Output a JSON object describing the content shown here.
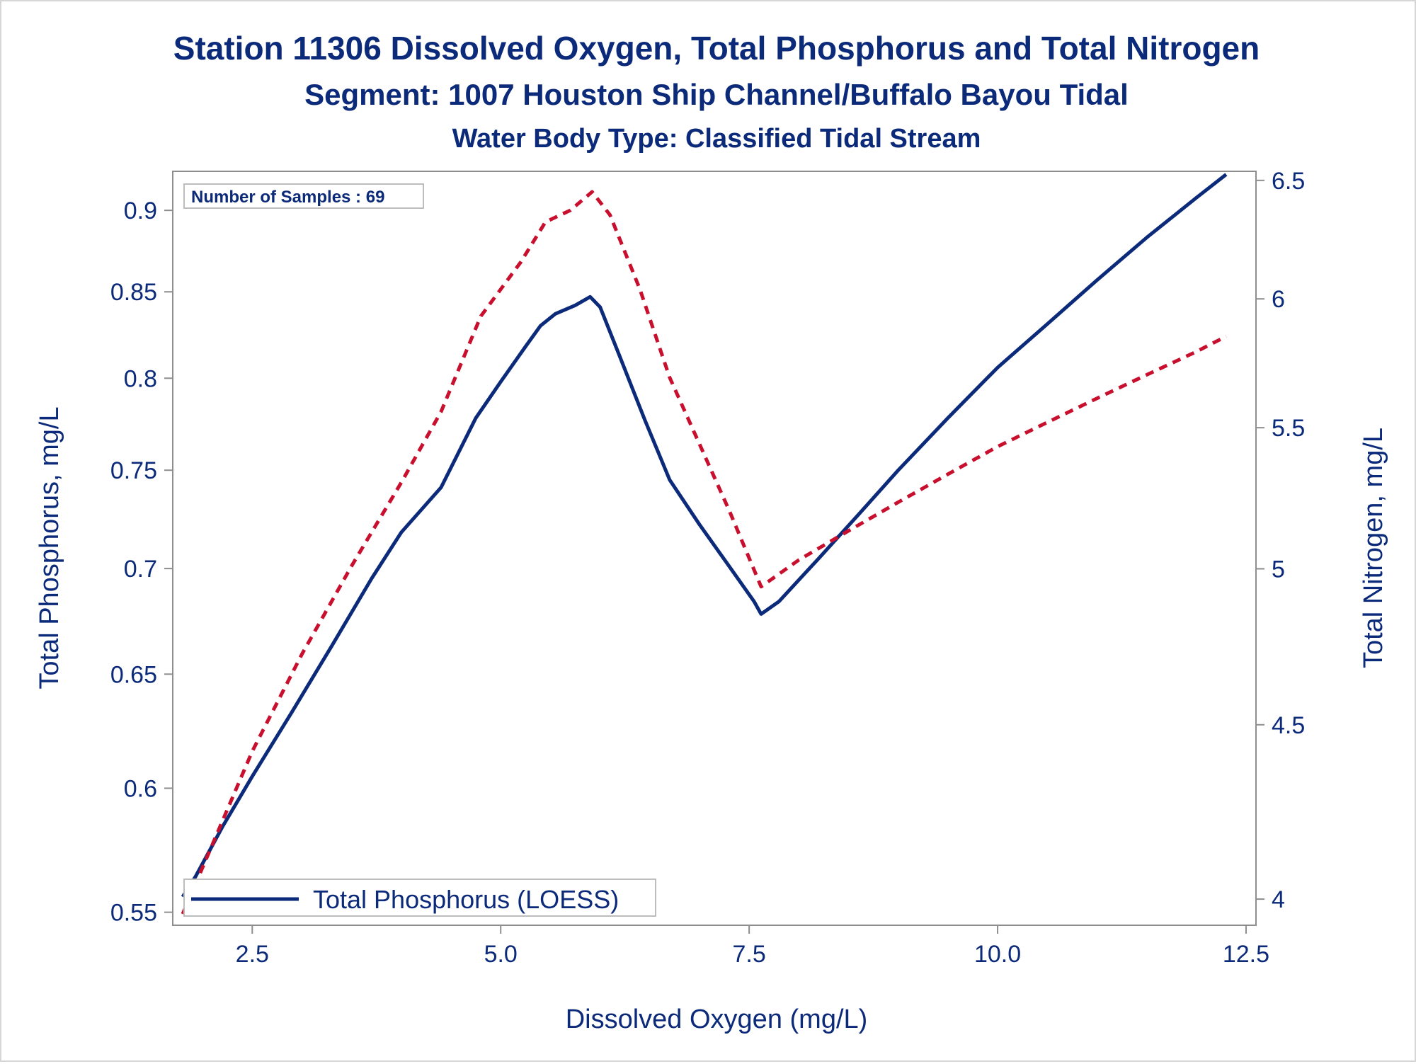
{
  "chart_data": {
    "type": "line",
    "title_lines": [
      "Station 11306  Dissolved Oxygen, Total Phosphorus and Total Nitrogen",
      "Segment: 1007  Houston Ship Channel/Buffalo Bayou Tidal",
      "Water Body Type: Classified Tidal Stream"
    ],
    "xlabel": "Dissolved Oxygen (mg/L)",
    "ylabel_left": "Total Phosphorus, mg/L",
    "ylabel_right": "Total Nitrogen, mg/L",
    "annotation": "Number of Samples : 69",
    "xlim": [
      1.7,
      12.6
    ],
    "ylim_left": [
      0.545,
      0.925
    ],
    "ylim_right": [
      3.93,
      6.54
    ],
    "y_scale": "log",
    "x_ticks": [
      "2.5",
      "5.0",
      "7.5",
      "10.0",
      "12.5"
    ],
    "y_left_ticks": [
      "0.55",
      "0.6",
      "0.65",
      "0.7",
      "0.75",
      "0.8",
      "0.85",
      "0.9"
    ],
    "y_right_ticks": [
      "4",
      "4.5",
      "5",
      "5.5",
      "6",
      "6.5"
    ],
    "legend": {
      "placement": "bottom-left",
      "entries": [
        "Total Phosphorus (LOESS)"
      ]
    },
    "series": [
      {
        "name": "Total Phosphorus (LOESS)",
        "axis": "left",
        "color": "#0c2a7a",
        "style": "solid",
        "x": [
          1.8,
          1.93,
          2.2,
          2.5,
          2.9,
          3.3,
          3.7,
          4.0,
          4.4,
          4.75,
          5.0,
          5.25,
          5.4,
          5.55,
          5.75,
          5.9,
          6.0,
          6.2,
          6.45,
          6.7,
          7.0,
          7.3,
          7.55,
          7.62,
          7.8,
          8.2,
          8.6,
          9.0,
          9.5,
          10.0,
          10.5,
          11.0,
          11.5,
          12.0,
          12.3
        ],
        "y": [
          0.556,
          0.564,
          0.584,
          0.605,
          0.633,
          0.663,
          0.695,
          0.718,
          0.741,
          0.778,
          0.798,
          0.818,
          0.83,
          0.837,
          0.842,
          0.847,
          0.841,
          0.812,
          0.777,
          0.745,
          0.722,
          0.701,
          0.684,
          0.678,
          0.684,
          0.705,
          0.727,
          0.75,
          0.778,
          0.806,
          0.831,
          0.857,
          0.883,
          0.908,
          0.923
        ]
      },
      {
        "name": "",
        "axis": "right",
        "color": "#c8102e",
        "style": "dashed",
        "x": [
          1.8,
          2.5,
          3.0,
          3.5,
          4.0,
          4.4,
          4.8,
          5.2,
          5.45,
          5.7,
          5.92,
          6.1,
          6.4,
          6.7,
          7.0,
          7.3,
          7.62,
          8.0,
          8.5,
          9.0,
          9.5,
          10.0,
          10.5,
          11.0,
          11.5,
          12.0,
          12.3
        ],
        "y": [
          3.96,
          4.42,
          4.72,
          5.01,
          5.3,
          5.56,
          5.93,
          6.15,
          6.32,
          6.37,
          6.45,
          6.35,
          6.04,
          5.69,
          5.44,
          5.2,
          4.94,
          5.03,
          5.13,
          5.23,
          5.33,
          5.43,
          5.52,
          5.61,
          5.7,
          5.79,
          5.85
        ]
      }
    ]
  }
}
